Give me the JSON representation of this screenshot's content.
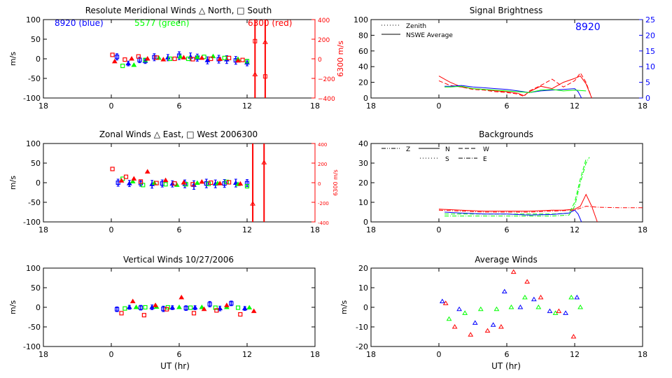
{
  "xaxis": {
    "ticks": [
      "18",
      "0",
      "6",
      "12",
      "18"
    ],
    "label": "UT (hr)"
  },
  "colors": {
    "blue": "#0000ff",
    "green": "#00ff00",
    "red": "#ff0000",
    "axis": "#000000"
  },
  "panels": {
    "meridional": {
      "title": "Resolute Meridional Winds △ North, □ South",
      "ylabel": "m/s",
      "yticks": [
        "100",
        "50",
        "0",
        "-50",
        "-100"
      ],
      "right_ylabel": "6300 m/s",
      "right_yticks": [
        "400",
        "200",
        "0",
        "−200",
        "−400"
      ],
      "legend": {
        "blue": "8920 (blue)",
        "green": "5577 (green)",
        "red": "6300 (red)"
      }
    },
    "zonal": {
      "title": "Zonal Winds △ East, □ West 2006300",
      "ylabel": "m/s",
      "yticks": [
        "100",
        "50",
        "0",
        "-50",
        "-100"
      ],
      "right_ylabel": "6300 m/s",
      "right_yticks": [
        "400",
        "200",
        "0",
        "-200",
        "-400"
      ]
    },
    "vertical": {
      "title": "Vertical Winds 10/27/2006",
      "ylabel": "m/s",
      "yticks": [
        "100",
        "50",
        "0",
        "-50",
        "-100"
      ]
    },
    "brightness": {
      "title": "Signal Brightness",
      "yticks": [
        "100",
        "80",
        "60",
        "40",
        "20",
        "0"
      ],
      "right_yticks": [
        "25",
        "20",
        "15",
        "10",
        "5",
        "0"
      ],
      "legend": [
        "Zenith",
        "NSWE Average"
      ],
      "site": "8920"
    },
    "backgrounds": {
      "title": "Backgrounds",
      "yticks": [
        "40",
        "30",
        "20",
        "10",
        "0"
      ],
      "legend": [
        "Z",
        "N",
        "W",
        "S",
        "E"
      ]
    },
    "average": {
      "title": "Average Winds",
      "ylabel": "m/s",
      "yticks": [
        "20",
        "10",
        "0",
        "-10",
        "-20"
      ]
    }
  },
  "chart_data": [
    {
      "type": "scatter",
      "title": "Resolute Meridional Winds △ North, □ South",
      "xlim": [
        -6,
        18
      ],
      "ylim": [
        -100,
        100
      ],
      "y2lim": [
        -400,
        400
      ],
      "series": [
        {
          "name": "8920 (blue)",
          "x": [
            0.5,
            1.5,
            2.5,
            3.0,
            3.8,
            5.0,
            6.0,
            7.0,
            7.6,
            8.5,
            9.5,
            10.2,
            11.0,
            12.0
          ],
          "y": [
            5,
            -12,
            -3,
            -6,
            4,
            3,
            8,
            5,
            3,
            -4,
            -1,
            -2,
            -4,
            -10
          ],
          "err": [
            8,
            6,
            7,
            6,
            9,
            8,
            10,
            10,
            9,
            9,
            10,
            10,
            10,
            8
          ]
        },
        {
          "name": "5577 (green)",
          "x": [
            1.0,
            2.0,
            3.0,
            4.2,
            5.2,
            6.1,
            6.8,
            7.6,
            8.2,
            9.0,
            10.0,
            11.2,
            12.0
          ],
          "y": [
            -18,
            -16,
            -3,
            2,
            0,
            5,
            0,
            4,
            5,
            6,
            2,
            -1,
            -6
          ]
        },
        {
          "name": "6300 (red)",
          "x": [
            0.1,
            0.3,
            1.2,
            1.8,
            2.4,
            3.2,
            4.0,
            4.6,
            5.6,
            6.4,
            7.2,
            8.0,
            8.8,
            9.6,
            10.4,
            11.2,
            11.6
          ],
          "y": [
            10,
            -7,
            -2,
            0,
            6,
            0,
            3,
            -2,
            0,
            3,
            -1,
            2,
            0,
            -1,
            2,
            -5,
            -3
          ]
        },
        {
          "name": "6300 (red) spikes",
          "x": [
            12.7,
            13.6
          ],
          "y2_tri": [
            -160,
            170
          ],
          "y2_sq": [
            180,
            -180
          ]
        }
      ]
    },
    {
      "type": "scatter",
      "title": "Zonal Winds △ East, □ West 2006300",
      "xlim": [
        -6,
        18
      ],
      "ylim": [
        -100,
        100
      ],
      "y2lim": [
        -400,
        400
      ],
      "series": [
        {
          "name": "blue",
          "x": [
            0.6,
            1.6,
            2.6,
            3.6,
            4.5,
            5.4,
            6.5,
            7.3,
            8.4,
            9.2,
            10.0,
            11.0,
            12.0
          ],
          "y": [
            0,
            -2,
            -1,
            -4,
            -2,
            -3,
            -3,
            -6,
            -2,
            -3,
            -2,
            -1,
            -1
          ],
          "err": [
            9,
            8,
            8,
            10,
            9,
            8,
            10,
            11,
            11,
            10,
            10,
            10,
            9
          ]
        },
        {
          "name": "green",
          "x": [
            1.0,
            1.9,
            2.8,
            3.8,
            4.8,
            5.8,
            6.6,
            7.6,
            8.6,
            9.4,
            10.2,
            11.2,
            12.0
          ],
          "y": [
            10,
            3,
            -6,
            -1,
            -4,
            -6,
            -4,
            -1,
            -3,
            -2,
            2,
            -4,
            -9
          ]
        },
        {
          "name": "red",
          "x": [
            0.1,
            0.9,
            1.3,
            2.0,
            2.6,
            3.2,
            4.0,
            4.8,
            5.6,
            6.4,
            7.2,
            8.0,
            8.8,
            9.6,
            10.4,
            11.4
          ],
          "y": [
            35,
            5,
            15,
            10,
            3,
            28,
            -1,
            6,
            -2,
            0,
            -4,
            2,
            0,
            -2,
            1,
            -3
          ]
        },
        {
          "name": "red spikes",
          "x": [
            12.5,
            13.5
          ],
          "y2_tri": [
            -215,
            205
          ]
        }
      ]
    },
    {
      "type": "scatter",
      "title": "Vertical Winds 10/27/2006",
      "xlim": [
        -6,
        18
      ],
      "ylim": [
        -100,
        100
      ],
      "series": [
        {
          "name": "blue",
          "x": [
            0.5,
            1.6,
            2.6,
            3.6,
            4.6,
            5.4,
            6.6,
            7.4,
            8.7,
            9.6,
            10.6,
            11.8
          ],
          "y": [
            -5,
            0,
            -1,
            0,
            -4,
            -1,
            -2,
            -1,
            8,
            -3,
            10,
            -3
          ],
          "err": [
            6,
            5,
            6,
            6,
            7,
            5,
            6,
            5,
            7,
            6,
            6,
            5
          ]
        },
        {
          "name": "green",
          "x": [
            1.2,
            2.2,
            3.0,
            4.0,
            5.0,
            6.0,
            7.0,
            8.0,
            9.2,
            10.2,
            11.2,
            12.2
          ],
          "y": [
            -3,
            0,
            0,
            1,
            0,
            0,
            -1,
            0,
            -1,
            0,
            -1,
            -1
          ]
        },
        {
          "name": "red",
          "x": [
            0.9,
            1.9,
            2.9,
            3.9,
            4.9,
            6.2,
            7.3,
            8.2,
            9.3,
            10.2,
            11.4,
            12.6
          ],
          "y": [
            -15,
            15,
            -20,
            5,
            -5,
            25,
            -15,
            -5,
            -8,
            5,
            -18,
            -10
          ]
        }
      ]
    },
    {
      "type": "line",
      "title": "Signal Brightness",
      "xlim": [
        -6,
        18
      ],
      "ylim": [
        0,
        100
      ],
      "y2lim": [
        0,
        25
      ],
      "series": [
        {
          "name": "red",
          "style": "solid",
          "x": [
            0,
            1,
            2,
            3,
            4,
            5,
            6,
            7,
            7.5,
            8,
            9,
            10,
            11,
            12,
            12.5,
            13,
            13.5
          ],
          "y": [
            28,
            20,
            14,
            12,
            11,
            9,
            8,
            6,
            3,
            8,
            15,
            12,
            20,
            25,
            28,
            18,
            0
          ]
        },
        {
          "name": "red",
          "style": "dashed",
          "x": [
            0,
            1,
            2,
            3,
            4,
            5,
            6,
            7,
            7.5,
            8,
            9,
            10,
            11,
            12,
            12.5,
            13,
            13.5
          ],
          "y": [
            22,
            16,
            14,
            11,
            10,
            8,
            7,
            5,
            2,
            9,
            16,
            24,
            14,
            22,
            32,
            20,
            0
          ]
        },
        {
          "name": "blue",
          "style": "solid",
          "x": [
            0.5,
            1,
            2,
            3,
            4,
            5,
            6,
            7,
            8,
            9,
            10,
            11,
            12,
            12.3,
            12.6
          ],
          "y": [
            15,
            15,
            16,
            14,
            13,
            12,
            11,
            9,
            7,
            9,
            10,
            11,
            12,
            8,
            0
          ]
        },
        {
          "name": "green",
          "style": "solid",
          "x": [
            0.5,
            1,
            2,
            3,
            4,
            5,
            6,
            7,
            8,
            9,
            10,
            11,
            12,
            13
          ],
          "y": [
            14,
            14,
            15,
            12,
            11,
            10,
            9,
            8,
            7,
            10,
            11,
            9,
            10,
            9
          ]
        }
      ]
    },
    {
      "type": "line",
      "title": "Backgrounds",
      "xlim": [
        -6,
        18
      ],
      "ylim": [
        0,
        40
      ],
      "series": [
        {
          "name": "red",
          "style": "solid",
          "x": [
            0,
            2,
            4,
            6,
            8,
            10,
            11,
            12,
            12.5,
            13,
            13.5,
            14
          ],
          "y": [
            6.5,
            6,
            5.5,
            5.5,
            5.5,
            6,
            6,
            6.5,
            8,
            14,
            8,
            0
          ]
        },
        {
          "name": "red",
          "style": "dashdot",
          "x": [
            0,
            2,
            4,
            6,
            8,
            10,
            12,
            12.5,
            13,
            14,
            16,
            18
          ],
          "y": [
            6,
            5.5,
            5,
            5,
            5,
            5.5,
            6,
            7,
            8,
            7.5,
            7.2,
            7.2
          ]
        },
        {
          "name": "green",
          "style": "dashdot",
          "x": [
            0.5,
            2,
            4,
            6,
            8,
            10,
            11.5,
            12,
            12.5,
            13,
            13.3
          ],
          "y": [
            3,
            3,
            3,
            3,
            3,
            3,
            3.5,
            8,
            20,
            30,
            33
          ]
        },
        {
          "name": "green",
          "style": "dashed",
          "x": [
            0.5,
            2,
            4,
            6,
            8,
            10,
            11.5,
            12,
            12.5,
            13
          ],
          "y": [
            4,
            4,
            4,
            4,
            4,
            4,
            4.5,
            10,
            22,
            32
          ]
        },
        {
          "name": "blue",
          "style": "solid",
          "x": [
            0.5,
            2,
            4,
            6,
            8,
            10,
            11.5,
            12,
            12.3,
            12.6
          ],
          "y": [
            5,
            4.5,
            4,
            4,
            3.5,
            3.8,
            4.5,
            6,
            4,
            0
          ]
        }
      ]
    },
    {
      "type": "scatter",
      "title": "Average Winds",
      "xlim": [
        -6,
        18
      ],
      "ylim": [
        -20,
        20
      ],
      "series": [
        {
          "name": "blue",
          "x": [
            0.3,
            1.8,
            3.2,
            4.8,
            5.8,
            7.2,
            8.4,
            9.8,
            11.2,
            12.2
          ],
          "y": [
            3,
            -1,
            -8,
            -9,
            8,
            0,
            4,
            -2,
            -3,
            5
          ]
        },
        {
          "name": "green",
          "x": [
            0.9,
            2.3,
            3.7,
            5.1,
            6.4,
            7.6,
            8.8,
            10.3,
            11.7,
            12.5
          ],
          "y": [
            -6,
            -3,
            -1,
            -1,
            0,
            5,
            0,
            -3,
            5,
            0
          ]
        },
        {
          "name": "red",
          "x": [
            0.6,
            1.4,
            2.8,
            4.3,
            5.5,
            6.6,
            7.8,
            9.0,
            10.6,
            11.9
          ],
          "y": [
            2,
            -10,
            -14,
            -12,
            -10,
            18,
            13,
            5,
            -2,
            -15
          ]
        }
      ]
    }
  ]
}
